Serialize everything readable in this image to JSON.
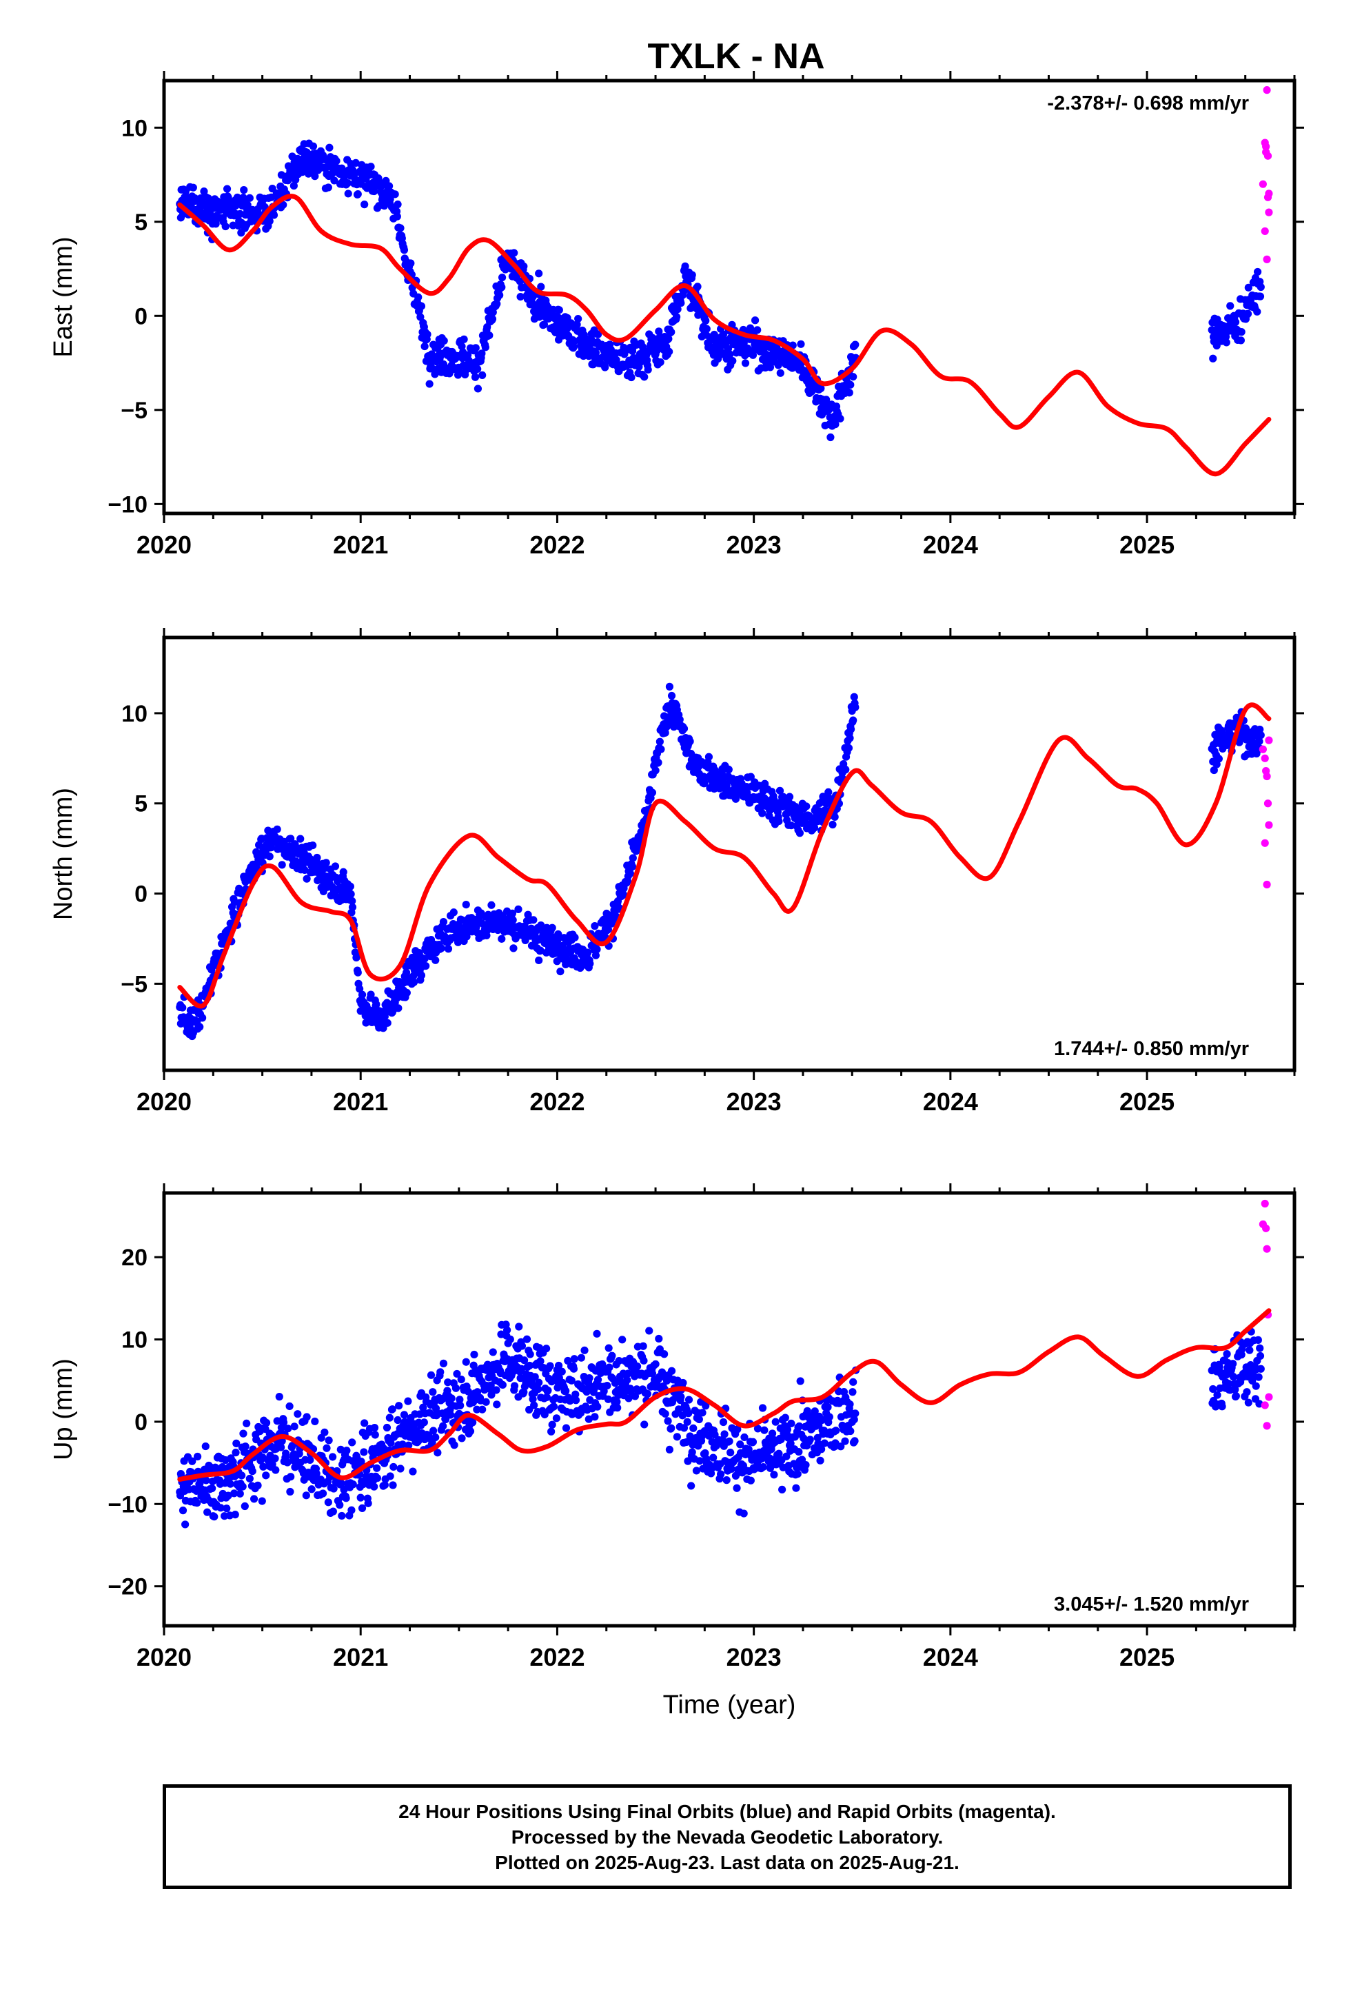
{
  "title": "TXLK - NA",
  "caption": {
    "line1": "24 Hour Positions Using Final Orbits (blue) and Rapid Orbits (magenta).",
    "line2": "Processed by the Nevada Geodetic Laboratory.",
    "line3": "Plotted on 2025-Aug-23. Last data on 2025-Aug-21."
  },
  "colors": {
    "final_orbits": "#0000ff",
    "rapid_orbits": "#ff00ff",
    "model_fit": "#ff0000"
  },
  "chart_data": [
    {
      "type": "scatter",
      "panel": "east",
      "ylabel": "East (mm)",
      "xlim": [
        2020.0,
        2025.75
      ],
      "ylim": [
        -10.5,
        12.5
      ],
      "yticks": [
        -10,
        -5,
        0,
        5,
        10
      ],
      "xticks": [
        2020,
        2021,
        2022,
        2023,
        2024,
        2025
      ],
      "rate": "-2.378+/- 0.698 mm/yr",
      "rate_position": "top-right",
      "grid": false,
      "series": [
        {
          "name": "Final Orbits",
          "style": "points",
          "color": "#0000ff",
          "segments": [
            [
              2020.08,
              2023.52
            ],
            [
              2025.33,
              2025.58
            ]
          ],
          "envelope_x": [
            2020.08,
            2020.3,
            2020.55,
            2020.7,
            2020.95,
            2021.15,
            2021.35,
            2021.6,
            2021.75,
            2021.95,
            2022.15,
            2022.35,
            2022.55,
            2022.65,
            2022.8,
            2023.0,
            2023.25,
            2023.4,
            2023.52,
            2025.33,
            2025.45,
            2025.58
          ],
          "envelope_y": [
            6.0,
            5.5,
            5.5,
            8.5,
            7.5,
            6.5,
            -2.0,
            -2.5,
            3.0,
            0.0,
            -1.5,
            -2.5,
            -1.5,
            2.0,
            -1.5,
            -1.5,
            -2.5,
            -5.5,
            -2.0,
            -1.0,
            -0.5,
            1.5
          ],
          "spread": 1.3,
          "daily": true
        },
        {
          "name": "Rapid Orbits",
          "style": "points",
          "color": "#ff00ff",
          "x": [
            2025.59,
            2025.6,
            2025.605,
            2025.61,
            2025.615,
            2025.62,
            2025.6,
            2025.61,
            2025.62,
            2025.605,
            2025.615
          ],
          "y": [
            7.0,
            9.2,
            8.7,
            12.0,
            8.5,
            6.5,
            4.5,
            3.0,
            5.5,
            9.0,
            6.3
          ]
        },
        {
          "name": "Model",
          "style": "line",
          "color": "#ff0000",
          "x": [
            2020.08,
            2020.2,
            2020.33,
            2020.45,
            2020.55,
            2020.67,
            2020.8,
            2020.95,
            2021.1,
            2021.2,
            2021.35,
            2021.45,
            2021.55,
            2021.65,
            2021.78,
            2021.9,
            2022.05,
            2022.15,
            2022.25,
            2022.35,
            2022.5,
            2022.65,
            2022.8,
            2022.95,
            2023.1,
            2023.25,
            2023.35,
            2023.5,
            2023.65,
            2023.8,
            2023.95,
            2024.1,
            2024.25,
            2024.35,
            2024.5,
            2024.65,
            2024.8,
            2024.95,
            2025.1,
            2025.2,
            2025.35,
            2025.5,
            2025.62
          ],
          "y": [
            5.9,
            4.8,
            3.5,
            4.5,
            5.8,
            6.3,
            4.5,
            3.8,
            3.6,
            2.5,
            1.2,
            2.0,
            3.6,
            4.0,
            2.7,
            1.3,
            1.1,
            0.3,
            -1.0,
            -1.2,
            0.3,
            1.6,
            -0.2,
            -1.0,
            -1.3,
            -2.3,
            -3.6,
            -2.8,
            -0.8,
            -1.5,
            -3.2,
            -3.5,
            -5.2,
            -5.9,
            -4.3,
            -3.0,
            -4.8,
            -5.7,
            -6.0,
            -7.0,
            -8.4,
            -6.8,
            -5.5
          ]
        }
      ]
    },
    {
      "type": "scatter",
      "panel": "north",
      "ylabel": "North (mm)",
      "xlim": [
        2020.0,
        2025.75
      ],
      "ylim": [
        -9.8,
        14.2
      ],
      "yticks": [
        -5,
        0,
        5,
        10
      ],
      "xticks": [
        2020,
        2021,
        2022,
        2023,
        2024,
        2025
      ],
      "rate": "1.744+/- 0.850 mm/yr",
      "rate_position": "bottom-right",
      "grid": false,
      "series": [
        {
          "name": "Final Orbits",
          "style": "points",
          "color": "#0000ff",
          "segments": [
            [
              2020.08,
              2023.52
            ],
            [
              2025.33,
              2025.58
            ]
          ],
          "envelope_x": [
            2020.08,
            2020.15,
            2020.3,
            2020.45,
            2020.55,
            2020.7,
            2020.95,
            2021.0,
            2021.1,
            2021.25,
            2021.45,
            2021.7,
            2021.95,
            2022.15,
            2022.3,
            2022.45,
            2022.55,
            2022.6,
            2022.7,
            2022.9,
            2023.1,
            2023.3,
            2023.42,
            2023.52,
            2025.33,
            2025.45,
            2025.58
          ],
          "envelope_y": [
            -6.5,
            -7.5,
            -3.0,
            1.5,
            3.0,
            2.0,
            0.0,
            -6.0,
            -7.0,
            -4.5,
            -2.0,
            -1.5,
            -2.5,
            -3.5,
            -1.0,
            4.0,
            10.0,
            10.0,
            7.0,
            6.0,
            5.0,
            4.0,
            5.0,
            11.0,
            8.0,
            9.0,
            8.5
          ],
          "spread": 1.2,
          "daily": true
        },
        {
          "name": "Rapid Orbits",
          "style": "points",
          "color": "#ff00ff",
          "x": [
            2025.59,
            2025.6,
            2025.605,
            2025.61,
            2025.615,
            2025.62,
            2025.6,
            2025.61,
            2025.62
          ],
          "y": [
            8.0,
            7.5,
            6.8,
            6.5,
            5.0,
            3.8,
            2.8,
            0.5,
            8.5
          ]
        },
        {
          "name": "Model",
          "style": "line",
          "color": "#ff0000",
          "x": [
            2020.08,
            2020.2,
            2020.3,
            2020.45,
            2020.55,
            2020.7,
            2020.85,
            2020.95,
            2021.05,
            2021.2,
            2021.35,
            2021.55,
            2021.7,
            2021.85,
            2021.95,
            2022.1,
            2022.25,
            2022.4,
            2022.5,
            2022.65,
            2022.8,
            2022.95,
            2023.1,
            2023.2,
            2023.35,
            2023.5,
            2023.6,
            2023.75,
            2023.9,
            2024.05,
            2024.2,
            2024.35,
            2024.55,
            2024.7,
            2024.85,
            2024.95,
            2025.05,
            2025.2,
            2025.35,
            2025.5,
            2025.62
          ],
          "y": [
            -5.2,
            -6.2,
            -3.5,
            0.5,
            1.5,
            -0.5,
            -1.0,
            -1.5,
            -4.5,
            -4.0,
            0.5,
            3.2,
            2.0,
            0.8,
            0.5,
            -1.5,
            -2.7,
            1.0,
            5.0,
            4.0,
            2.5,
            2.0,
            0.0,
            -0.8,
            3.5,
            6.7,
            6.0,
            4.5,
            4.0,
            2.0,
            0.9,
            4.0,
            8.5,
            7.5,
            6.0,
            5.8,
            5.0,
            2.7,
            5.0,
            10.2,
            9.7
          ]
        }
      ]
    },
    {
      "type": "scatter",
      "panel": "up",
      "ylabel": "Up (mm)",
      "xlabel": "Time (year)",
      "xlim": [
        2020.0,
        2025.75
      ],
      "ylim": [
        -24.8,
        27.8
      ],
      "yticks": [
        -20,
        -10,
        0,
        10,
        20
      ],
      "xticks": [
        2020,
        2021,
        2022,
        2023,
        2024,
        2025
      ],
      "rate": "3.045+/- 1.520 mm/yr",
      "rate_position": "bottom-right",
      "grid": false,
      "series": [
        {
          "name": "Final Orbits",
          "style": "points",
          "color": "#0000ff",
          "segments": [
            [
              2020.08,
              2023.52
            ],
            [
              2025.33,
              2025.58
            ]
          ],
          "envelope_x": [
            2020.08,
            2020.3,
            2020.6,
            2020.9,
            2021.05,
            2021.3,
            2021.55,
            2021.75,
            2022.0,
            2022.25,
            2022.5,
            2022.7,
            2022.95,
            2023.2,
            2023.52,
            2025.33,
            2025.58
          ],
          "envelope_y": [
            -8.0,
            -7.0,
            -2.0,
            -8.0,
            -5.0,
            0.0,
            3.0,
            8.0,
            3.0,
            5.0,
            6.0,
            -1.0,
            -5.0,
            -3.0,
            2.0,
            5.0,
            7.0
          ],
          "spread": 6.0,
          "daily": true
        },
        {
          "name": "Rapid Orbits",
          "style": "points",
          "color": "#ff00ff",
          "x": [
            2025.59,
            2025.6,
            2025.605,
            2025.61,
            2025.615,
            2025.62,
            2025.6,
            2025.61
          ],
          "y": [
            24.0,
            26.5,
            23.5,
            21.0,
            13.0,
            3.0,
            2.0,
            -0.5
          ]
        },
        {
          "name": "Model",
          "style": "line",
          "color": "#ff0000",
          "x": [
            2020.08,
            2020.2,
            2020.35,
            2020.45,
            2020.6,
            2020.75,
            2020.9,
            2021.05,
            2021.2,
            2021.35,
            2021.45,
            2021.55,
            2021.7,
            2021.82,
            2021.95,
            2022.1,
            2022.25,
            2022.35,
            2022.5,
            2022.65,
            2022.8,
            2022.95,
            2023.1,
            2023.2,
            2023.35,
            2023.5,
            2023.62,
            2023.75,
            2023.9,
            2024.05,
            2024.2,
            2024.35,
            2024.5,
            2024.65,
            2024.78,
            2024.95,
            2025.1,
            2025.25,
            2025.4,
            2025.5,
            2025.62
          ],
          "y": [
            -7.0,
            -6.5,
            -6.0,
            -4.0,
            -1.8,
            -3.8,
            -6.8,
            -5.0,
            -3.5,
            -3.5,
            -1.5,
            0.8,
            -1.5,
            -3.5,
            -3.0,
            -1.0,
            -0.3,
            0.0,
            3.0,
            4.0,
            2.0,
            -0.5,
            1.0,
            2.5,
            3.0,
            6.0,
            7.3,
            4.5,
            2.3,
            4.5,
            5.8,
            6.0,
            8.5,
            10.3,
            8.0,
            5.5,
            7.5,
            9.0,
            9.0,
            11.0,
            13.5
          ]
        }
      ]
    }
  ]
}
